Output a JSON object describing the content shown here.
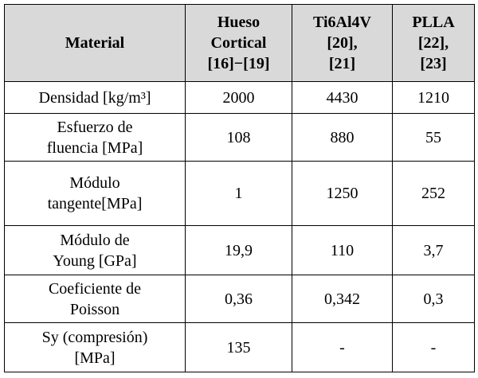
{
  "table": {
    "header": [
      "Material",
      "Hueso\nCortical\n[16]−[19]",
      "Ti6Al4V\n[20],\n[21]",
      "PLLA\n[22],\n[23]"
    ],
    "rows": [
      [
        "Densidad [kg/m³]",
        "2000",
        "4430",
        "1210"
      ],
      [
        "Esfuerzo de\nfluencia [MPa]",
        "108",
        "880",
        "55"
      ],
      [
        "Módulo\ntangente[MPa]",
        "1",
        "1250",
        "252"
      ],
      [
        "Módulo de\nYoung [GPa]",
        "19,9",
        "110",
        "3,7"
      ],
      [
        "Coeficiente de\nPoisson",
        "0,36",
        "0,342",
        "0,3"
      ],
      [
        "Sy (compresión)\n[MPa]",
        "135",
        "-",
        "-"
      ]
    ]
  }
}
